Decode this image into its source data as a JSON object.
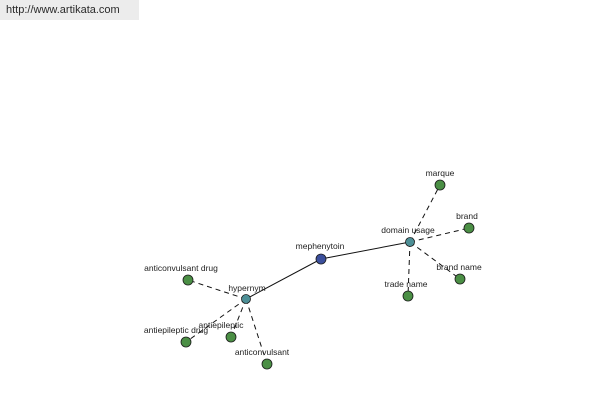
{
  "header": {
    "url": "http://www.artikata.com"
  },
  "graph": {
    "colors": {
      "center": "#3b4f9c",
      "hub": "#4d8f96",
      "leaf": "#4b8f45"
    },
    "nodes": [
      {
        "id": "mephenytoin",
        "label": "mephenytoin",
        "kind": "center"
      },
      {
        "id": "domain-usage",
        "label": "domain usage",
        "kind": "hub"
      },
      {
        "id": "hypernym",
        "label": "hypernym",
        "kind": "hub"
      },
      {
        "id": "marque",
        "label": "marque",
        "kind": "leaf"
      },
      {
        "id": "brand",
        "label": "brand",
        "kind": "leaf"
      },
      {
        "id": "brand-name",
        "label": "brand name",
        "kind": "leaf"
      },
      {
        "id": "trade-name",
        "label": "trade name",
        "kind": "leaf"
      },
      {
        "id": "anticonvulsant-drug",
        "label": "anticonvulsant drug",
        "kind": "leaf"
      },
      {
        "id": "antiepileptic-drug",
        "label": "antiepileptic drug",
        "kind": "leaf"
      },
      {
        "id": "antiepileptic",
        "label": "antiepileptic",
        "kind": "leaf"
      },
      {
        "id": "anticonvulsant",
        "label": "anticonvulsant",
        "kind": "leaf"
      }
    ],
    "edges": [
      {
        "from": "mephenytoin",
        "to": "domain-usage",
        "style": "solid"
      },
      {
        "from": "mephenytoin",
        "to": "hypernym",
        "style": "solid"
      },
      {
        "from": "domain-usage",
        "to": "marque",
        "style": "dashed"
      },
      {
        "from": "domain-usage",
        "to": "brand",
        "style": "dashed"
      },
      {
        "from": "domain-usage",
        "to": "brand-name",
        "style": "dashed"
      },
      {
        "from": "domain-usage",
        "to": "trade-name",
        "style": "dashed"
      },
      {
        "from": "hypernym",
        "to": "anticonvulsant-drug",
        "style": "dashed"
      },
      {
        "from": "hypernym",
        "to": "antiepileptic-drug",
        "style": "dashed"
      },
      {
        "from": "hypernym",
        "to": "antiepileptic",
        "style": "dashed"
      },
      {
        "from": "hypernym",
        "to": "anticonvulsant",
        "style": "dashed"
      }
    ]
  }
}
